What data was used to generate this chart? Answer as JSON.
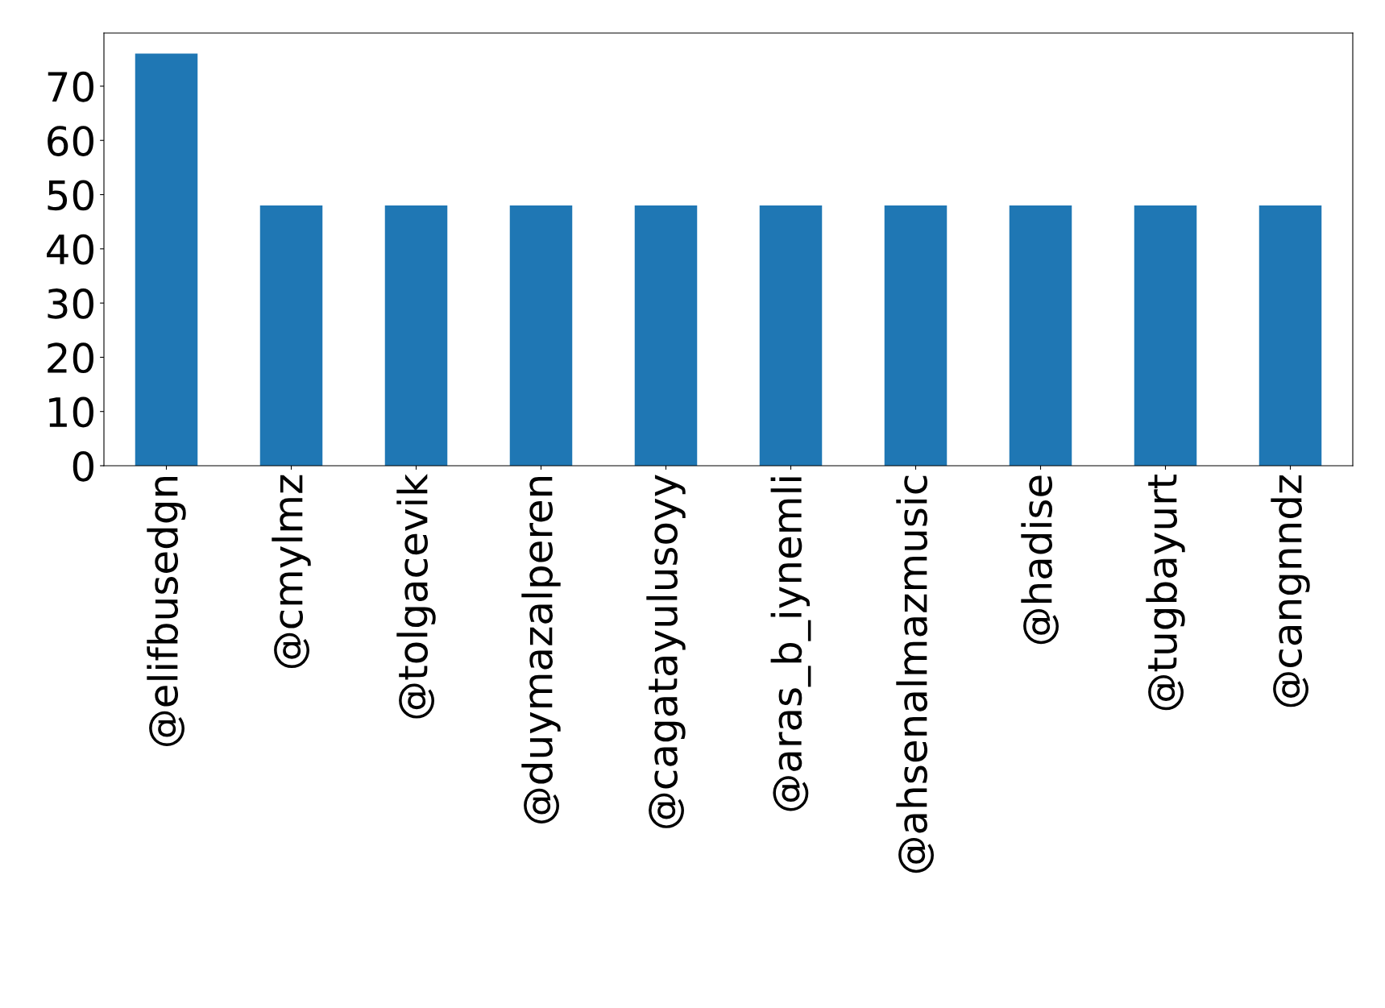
{
  "chart_data": {
    "type": "bar",
    "categories": [
      "@elifbusedgn",
      "@cmylmz",
      "@tolgacevik",
      "@duymazalperen",
      "@cagatayulusoyy",
      "@aras_b_iynemli",
      "@ahsenalmazmusic",
      "@hadise",
      "@tugbayurt",
      "@cangnndz"
    ],
    "values": [
      76,
      48,
      48,
      48,
      48,
      48,
      48,
      48,
      48,
      48
    ],
    "color": "#1f77b4",
    "ylim": [
      0,
      79.8
    ],
    "yticks": [
      0,
      10,
      20,
      30,
      40,
      50,
      60,
      70
    ],
    "grid": false,
    "legend": false
  }
}
